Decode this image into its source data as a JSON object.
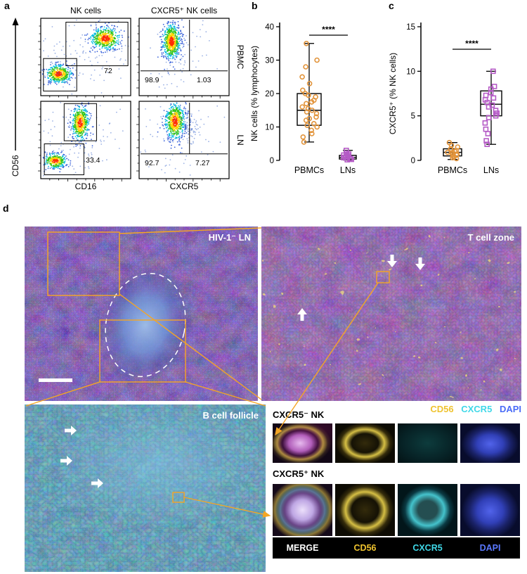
{
  "figure": {
    "panel_labels": {
      "a": "a",
      "b": "b",
      "c": "c",
      "d": "d"
    }
  },
  "panel_a": {
    "col_titles": [
      "NK cells",
      "CXCR5⁺ NK cells"
    ],
    "row_labels": [
      "PBMC",
      "LN"
    ],
    "y_axis_label": "CD56",
    "x_axis_labels": [
      "CD16",
      "CXCR5"
    ],
    "gates": {
      "pbmc_nk": "72",
      "pbmc_cxcr5_neg": "98.9",
      "pbmc_cxcr5_pos": "1.03",
      "ln_nk": "33.4",
      "ln_cxcr5_neg": "92.7",
      "ln_cxcr5_pos": "7.27"
    }
  },
  "chart_data": [
    {
      "type": "scatter",
      "panel": "b",
      "title": "",
      "ylabel": "NK cells (% lymphocytes)",
      "xlabel": "",
      "ylim": [
        0,
        40
      ],
      "yticks": [
        0,
        10,
        20,
        30,
        40
      ],
      "grid": false,
      "legend_position": "none",
      "significance": "****",
      "groups": [
        {
          "label": "PBMCs",
          "marker": "circle",
          "color": "#E2943B",
          "values": [
            35,
            30,
            28,
            25,
            23,
            21,
            20,
            19.5,
            19,
            18,
            17.5,
            17,
            16,
            15.5,
            15,
            14.5,
            14,
            13,
            12.5,
            12,
            11,
            10.5,
            10,
            9,
            8,
            7,
            5.5
          ],
          "box": {
            "whisker_low": 5.5,
            "q1": 10.5,
            "median": 15,
            "q3": 20,
            "whisker_high": 35
          }
        },
        {
          "label": "LNs",
          "marker": "square",
          "color": "#B55BC6",
          "values": [
            0.2,
            0.3,
            0.5,
            0.6,
            0.8,
            0.9,
            1.0,
            1.2,
            1.4,
            1.6,
            1.9,
            2.2,
            3.0
          ],
          "box": {
            "whisker_low": 0.1,
            "q1": 0.4,
            "median": 0.9,
            "q3": 1.5,
            "whisker_high": 3.0
          }
        }
      ]
    },
    {
      "type": "scatter",
      "panel": "c",
      "title": "",
      "ylabel": "CXCR5⁺ (% NK cells)",
      "xlabel": "",
      "ylim": [
        0,
        15
      ],
      "yticks": [
        0,
        5,
        10,
        15
      ],
      "grid": false,
      "legend_position": "none",
      "significance": "****",
      "groups": [
        {
          "label": "PBMCs",
          "marker": "circle",
          "color": "#E2943B",
          "values": [
            0.2,
            0.3,
            0.4,
            0.5,
            0.6,
            0.65,
            0.7,
            0.8,
            0.9,
            1.0,
            1.1,
            1.2,
            1.3,
            1.5,
            1.7,
            2.0
          ],
          "box": {
            "whisker_low": 0.1,
            "q1": 0.5,
            "median": 0.9,
            "q3": 1.3,
            "whisker_high": 2.0
          }
        },
        {
          "label": "LNs",
          "marker": "square",
          "color": "#B55BC6",
          "values": [
            1.8,
            2.2,
            3.0,
            3.5,
            4.2,
            4.8,
            5.0,
            5.3,
            5.6,
            6.0,
            6.2,
            6.5,
            6.8,
            7.0,
            7.3,
            7.6,
            8.0,
            8.3,
            10.0
          ],
          "box": {
            "whisker_low": 1.8,
            "q1": 5.0,
            "median": 6.3,
            "q3": 7.8,
            "whisker_high": 10.0
          }
        }
      ]
    }
  ],
  "panel_d": {
    "overview_label": "HIV-1⁻ LN",
    "tcell_zone_label": "T cell zone",
    "bcell_follicle_label": "B cell follicle",
    "stain_legend": [
      {
        "text": "CD56",
        "color": "#EFC32F"
      },
      {
        "text": "CXCR5",
        "color": "#3FD8E8"
      },
      {
        "text": "DAPI",
        "color": "#4A6CF7"
      }
    ],
    "crop_rows": [
      {
        "title": "CXCR5⁻ NK"
      },
      {
        "title": "CXCR5⁺ NK"
      }
    ],
    "channel_labels": [
      {
        "text": "MERGE",
        "color": "#FFFFFF"
      },
      {
        "text": "CD56",
        "color": "#EFC32F"
      },
      {
        "text": "CXCR5",
        "color": "#3FD8E8"
      },
      {
        "text": "DAPI",
        "color": "#5A78FF"
      }
    ]
  }
}
